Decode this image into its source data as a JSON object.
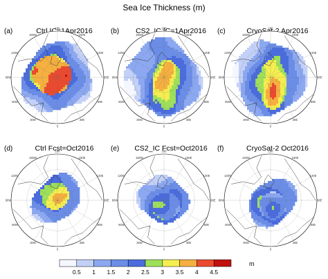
{
  "figure": {
    "title": "Sea Ice Thickness (m)"
  },
  "chart_data": {
    "type": "heatmap",
    "title": "Sea Ice Thickness (m)",
    "projection": "north polar stereographic",
    "meridian_labels": [
      "180",
      "150W",
      "150E",
      "120W",
      "120E",
      "90W",
      "90E",
      "60W",
      "60E",
      "30W",
      "30E",
      "0"
    ],
    "panels": [
      {
        "tag": "(a)",
        "title": "Ctrl IC=1Apr2016",
        "max_thickness_m": 4.7,
        "mean_thick_core_m": 3.6
      },
      {
        "tag": "(b)",
        "title": "CS2_IC IC=1Apr2016",
        "max_thickness_m": 4.0,
        "mean_thick_core_m": 2.6
      },
      {
        "tag": "(c)",
        "title": "CryoSat-2 Apr2016",
        "max_thickness_m": 4.4,
        "mean_thick_core_m": 2.7
      },
      {
        "tag": "(d)",
        "title": "Ctrl Fcst=Oct2016",
        "max_thickness_m": 4.0,
        "mean_thick_core_m": 2.9
      },
      {
        "tag": "(e)",
        "title": "CS2_IC Fcst=Oct2016",
        "max_thickness_m": 2.6,
        "mean_thick_core_m": 1.7
      },
      {
        "tag": "(f)",
        "title": "CryoSat-2 Oct2016",
        "max_thickness_m": 2.7,
        "mean_thick_core_m": 1.5
      }
    ],
    "colorbar": {
      "ticks": [
        "0.5",
        "1",
        "1.5",
        "2",
        "2.5",
        "3",
        "3.5",
        "4",
        "4.5"
      ],
      "colors": [
        "#f4f7ff",
        "#c3d0f7",
        "#8ca8f0",
        "#6b8de6",
        "#4b6cdc",
        "#9fe05a",
        "#f4ee50",
        "#f5b040",
        "#ea4a2e",
        "#c01010"
      ],
      "unit": "m"
    }
  }
}
